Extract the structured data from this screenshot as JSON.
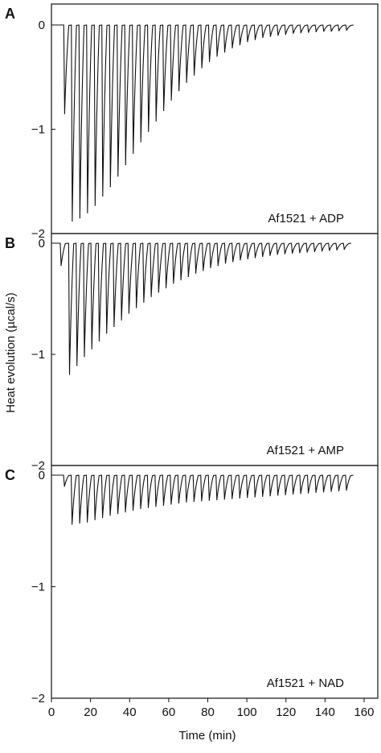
{
  "chart_data": {
    "type": "line",
    "xlabel": "Time (min)",
    "ylabel": "Heat evolution (µcal/s)",
    "x_ticks": [
      0,
      20,
      40,
      60,
      80,
      100,
      120,
      140,
      160
    ],
    "xlim": [
      0,
      167
    ],
    "panels": [
      {
        "letter": "A",
        "annotation": "Af1521 + ADP",
        "ylim": [
          -2,
          0.1
        ],
        "y_ticks": [
          0,
          -1,
          -2
        ],
        "injection_times": [
          6.3,
          10.2,
          14.1,
          18.0,
          21.9,
          25.8,
          29.7,
          33.6,
          37.5,
          41.4,
          45.3,
          49.2,
          53.1,
          57.0,
          60.9,
          64.8,
          68.7,
          72.6,
          76.5,
          80.4,
          84.3,
          88.2,
          92.1,
          96.0,
          99.9,
          103.8,
          107.7,
          111.6,
          115.5,
          119.4,
          123.3,
          127.2,
          131.1,
          135.0,
          138.9,
          142.8,
          146.7,
          150.6
        ],
        "peak_heights": [
          -0.85,
          -1.88,
          -1.85,
          -1.8,
          -1.73,
          -1.64,
          -1.55,
          -1.45,
          -1.34,
          -1.23,
          -1.12,
          -1.02,
          -0.92,
          -0.82,
          -0.72,
          -0.63,
          -0.55,
          -0.48,
          -0.41,
          -0.35,
          -0.3,
          -0.26,
          -0.22,
          -0.19,
          -0.16,
          -0.14,
          -0.12,
          -0.11,
          -0.1,
          -0.09,
          -0.08,
          -0.075,
          -0.07,
          -0.065,
          -0.06,
          -0.06,
          -0.055,
          -0.05
        ]
      },
      {
        "letter": "B",
        "annotation": "Af1521 + AMP",
        "ylim": [
          -2,
          0.05
        ],
        "y_ticks": [
          0,
          -1,
          -2
        ],
        "injection_times": [
          4.5,
          8.8,
          12.6,
          16.4,
          20.2,
          24.0,
          27.8,
          31.6,
          35.4,
          39.2,
          43.0,
          46.8,
          50.6,
          54.4,
          58.2,
          62.0,
          65.8,
          69.6,
          73.4,
          77.2,
          81.0,
          84.8,
          88.6,
          92.4,
          96.2,
          100.0,
          103.8,
          107.6,
          111.4,
          115.2,
          119.0,
          122.8,
          126.6,
          130.4,
          134.2,
          138.0,
          141.8,
          145.6,
          149.4
        ],
        "peak_heights": [
          -0.2,
          -1.18,
          -1.1,
          -1.02,
          -0.95,
          -0.88,
          -0.81,
          -0.75,
          -0.69,
          -0.63,
          -0.58,
          -0.53,
          -0.48,
          -0.44,
          -0.4,
          -0.36,
          -0.33,
          -0.3,
          -0.27,
          -0.245,
          -0.22,
          -0.2,
          -0.18,
          -0.165,
          -0.15,
          -0.14,
          -0.13,
          -0.12,
          -0.11,
          -0.1,
          -0.095,
          -0.09,
          -0.085,
          -0.08,
          -0.075,
          -0.07,
          -0.065,
          -0.06,
          -0.055
        ]
      },
      {
        "letter": "C",
        "annotation": "Af1521 + NAD",
        "ylim": [
          -2,
          0.02
        ],
        "y_ticks": [
          0,
          -1,
          -2
        ],
        "injection_times": [
          6.2,
          10.1,
          14.0,
          17.9,
          21.8,
          25.7,
          29.6,
          33.5,
          37.4,
          41.3,
          45.2,
          49.1,
          53.0,
          56.9,
          60.8,
          64.7,
          68.6,
          72.5,
          76.4,
          80.3,
          84.2,
          88.1,
          92.0,
          95.9,
          99.8,
          103.7,
          107.6,
          111.5,
          115.4,
          119.3,
          123.2,
          127.1,
          131.0,
          134.9,
          138.8,
          142.7,
          146.6,
          150.5
        ],
        "peak_heights": [
          -0.1,
          -0.44,
          -0.43,
          -0.42,
          -0.4,
          -0.38,
          -0.36,
          -0.345,
          -0.33,
          -0.315,
          -0.3,
          -0.29,
          -0.28,
          -0.27,
          -0.26,
          -0.25,
          -0.24,
          -0.235,
          -0.23,
          -0.225,
          -0.22,
          -0.215,
          -0.21,
          -0.205,
          -0.2,
          -0.195,
          -0.19,
          -0.185,
          -0.18,
          -0.175,
          -0.17,
          -0.165,
          -0.16,
          -0.155,
          -0.15,
          -0.145,
          -0.14,
          -0.135
        ]
      }
    ]
  }
}
